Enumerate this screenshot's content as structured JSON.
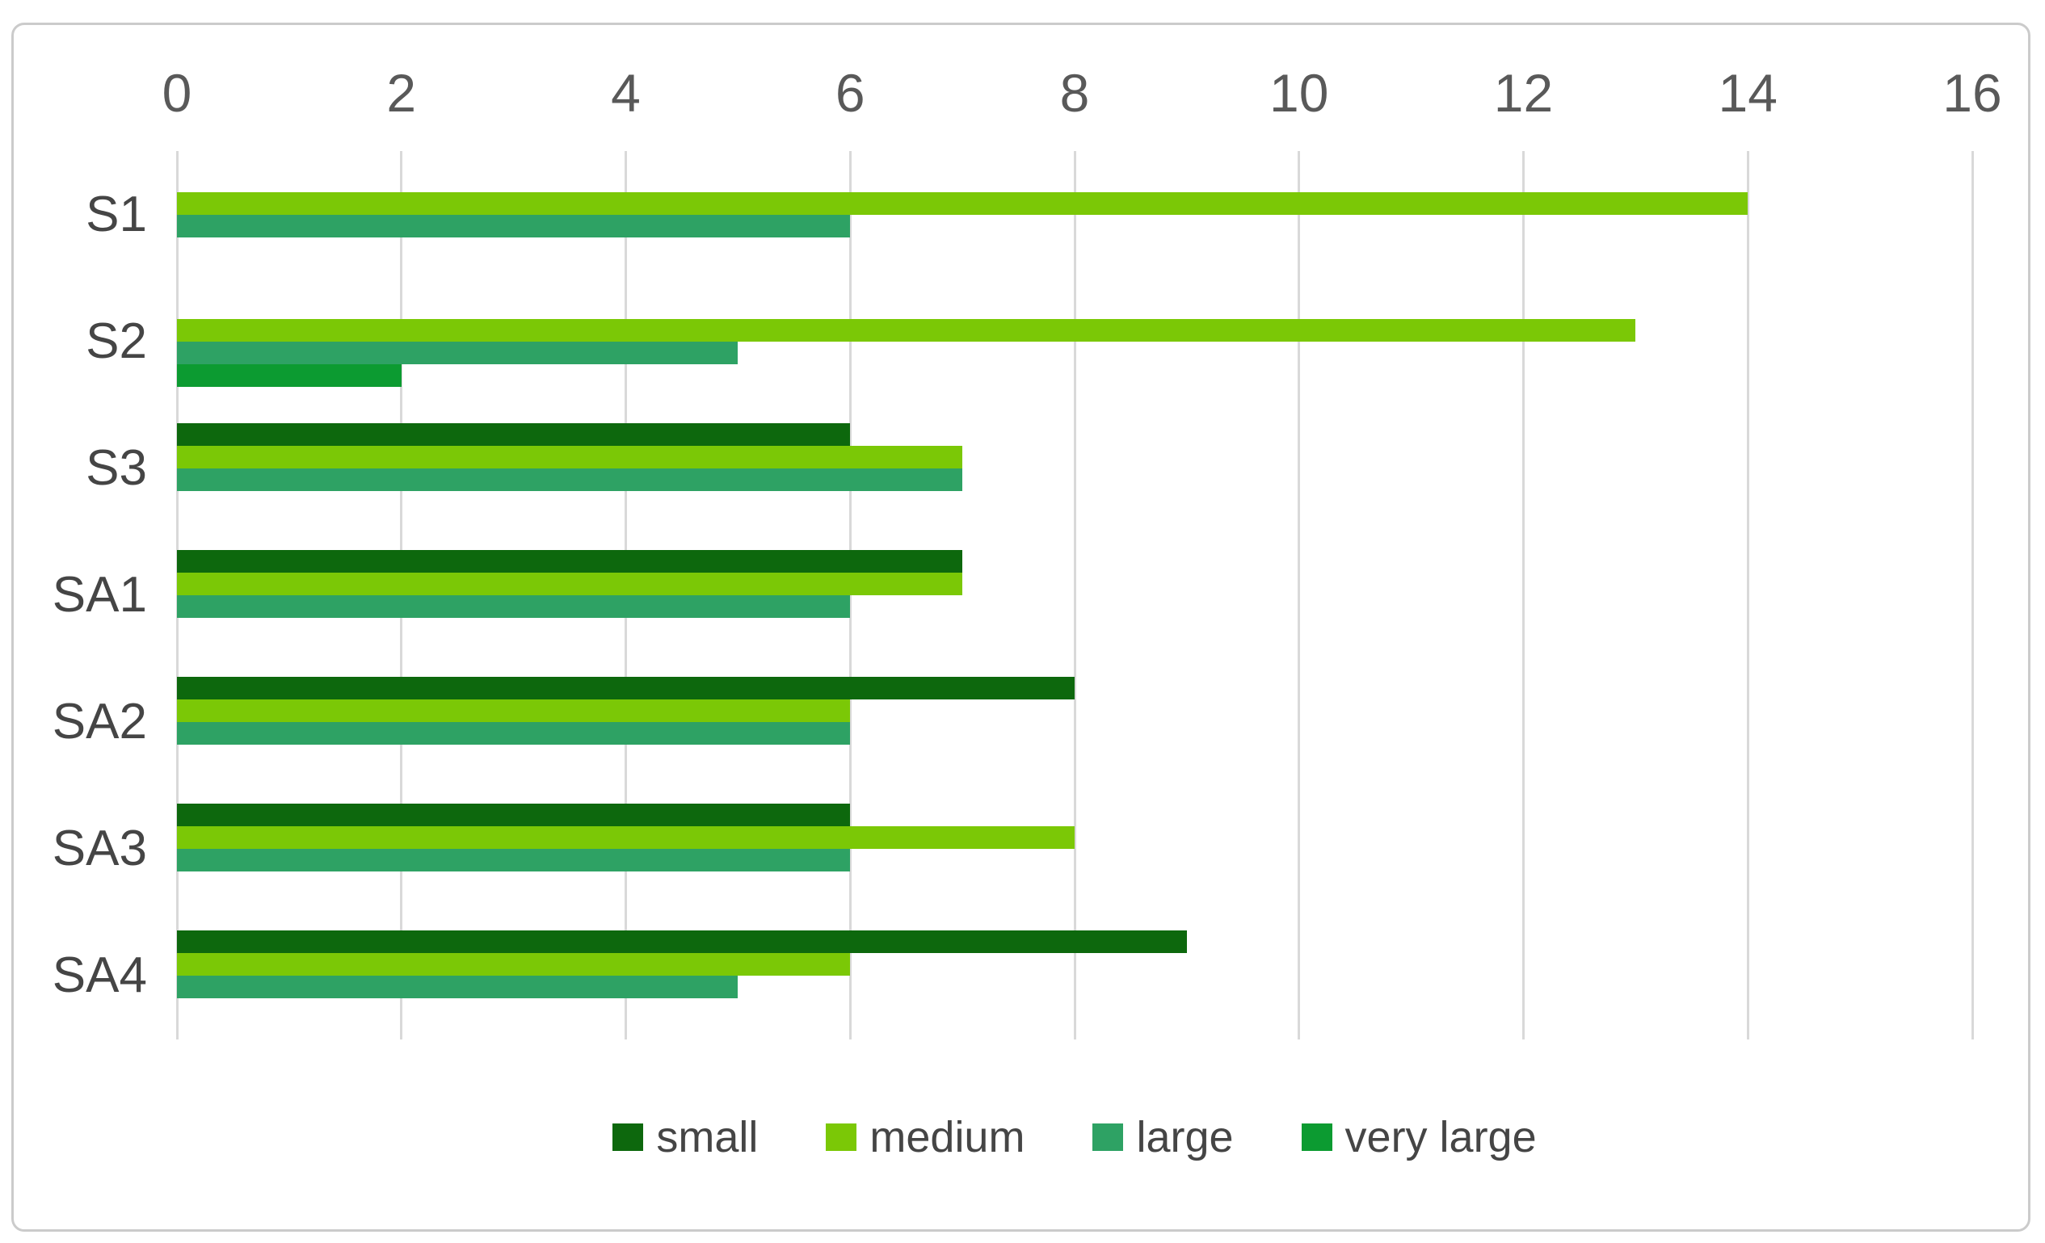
{
  "chart_data": {
    "type": "bar",
    "orientation": "horizontal",
    "title": "",
    "xlabel": "",
    "ylabel": "",
    "xlim": [
      0,
      16
    ],
    "xticks": [
      "0",
      "2",
      "4",
      "6",
      "8",
      "10",
      "12",
      "14",
      "16"
    ],
    "grid": true,
    "legend_position": "bottom-center",
    "categories": [
      "S1",
      "S2",
      "S3",
      "SA1",
      "SA2",
      "SA3",
      "SA4"
    ],
    "series": [
      {
        "name": "small",
        "color": "#0D680D",
        "values": [
          0,
          0,
          6,
          7,
          8,
          6,
          9
        ]
      },
      {
        "name": "medium",
        "color": "#7BC806",
        "values": [
          14,
          13,
          7,
          7,
          6,
          8,
          6
        ]
      },
      {
        "name": "large",
        "color": "#2EA264",
        "values": [
          6,
          5,
          7,
          6,
          6,
          6,
          5
        ]
      },
      {
        "name": "very large",
        "color": "#0C9B31",
        "values": [
          0,
          2,
          0,
          0,
          0,
          0,
          0
        ]
      }
    ],
    "colors": {
      "gridline": "#D9D9D9",
      "tick_label": "#595959",
      "category_label": "#454545",
      "legend_label": "#454545",
      "frame_border": "#CBCBCB",
      "background": "#FFFFFF"
    }
  }
}
